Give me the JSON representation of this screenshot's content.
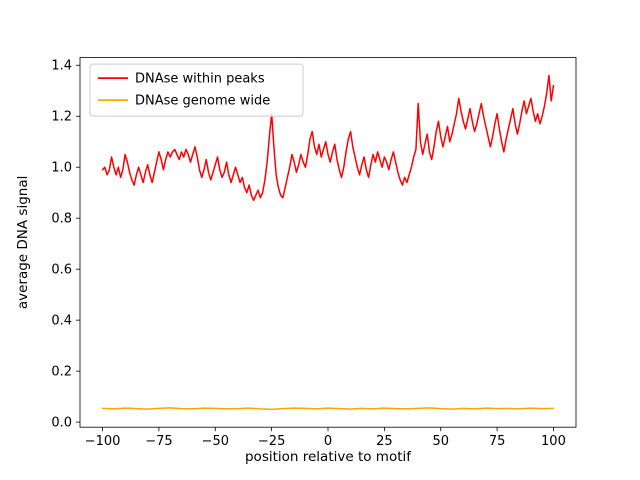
{
  "figure": {
    "background": "#ffffff"
  },
  "chart_data": {
    "type": "line",
    "title": "",
    "xlabel": "position relative to motif",
    "ylabel": "average DNA signal",
    "xlim": [
      -110,
      110
    ],
    "ylim": [
      -0.02,
      1.43
    ],
    "xticks": [
      -100,
      -75,
      -50,
      -25,
      0,
      25,
      50,
      75,
      100
    ],
    "yticks": [
      0.0,
      0.2,
      0.4,
      0.6,
      0.8,
      1.0,
      1.2,
      1.4
    ],
    "grid": false,
    "legend": {
      "position": "upper left",
      "border_color": "#cccccc",
      "background": "#ffffff"
    },
    "series": [
      {
        "name": "DNAse within peaks",
        "color": "#ff0000",
        "x_start": -100,
        "x_step": 1,
        "values": [
          0.99,
          1.0,
          0.97,
          0.99,
          1.04,
          1.0,
          0.97,
          1.0,
          0.96,
          0.99,
          1.05,
          1.02,
          0.98,
          0.95,
          0.93,
          0.97,
          1.0,
          0.97,
          0.94,
          0.98,
          1.01,
          0.97,
          0.94,
          0.98,
          1.02,
          1.06,
          1.03,
          0.99,
          1.03,
          1.06,
          1.04,
          1.06,
          1.07,
          1.05,
          1.03,
          1.06,
          1.04,
          1.07,
          1.05,
          1.02,
          1.05,
          1.08,
          1.04,
          0.99,
          0.96,
          0.99,
          1.03,
          0.98,
          0.95,
          0.98,
          1.01,
          1.04,
          0.99,
          0.96,
          0.98,
          1.02,
          0.97,
          0.94,
          0.97,
          1.0,
          0.97,
          0.94,
          0.96,
          0.92,
          0.9,
          0.93,
          0.89,
          0.87,
          0.89,
          0.91,
          0.88,
          0.9,
          0.95,
          1.02,
          1.12,
          1.21,
          1.08,
          0.97,
          0.92,
          0.89,
          0.88,
          0.92,
          0.96,
          1.0,
          1.05,
          1.02,
          0.98,
          1.01,
          1.05,
          1.02,
          1.0,
          1.05,
          1.11,
          1.14,
          1.08,
          1.05,
          1.09,
          1.04,
          1.07,
          1.1,
          1.05,
          1.02,
          1.06,
          1.09,
          1.03,
          0.99,
          0.96,
          1.0,
          1.06,
          1.11,
          1.14,
          1.08,
          1.04,
          1.0,
          0.97,
          1.01,
          1.04,
          0.99,
          0.96,
          1.01,
          1.05,
          1.02,
          1.06,
          1.03,
          1.0,
          1.04,
          1.02,
          0.99,
          1.03,
          1.06,
          1.02,
          0.98,
          0.95,
          0.93,
          0.96,
          0.94,
          0.97,
          1.0,
          1.04,
          1.07,
          1.25,
          1.1,
          1.05,
          1.09,
          1.13,
          1.06,
          1.03,
          1.08,
          1.14,
          1.18,
          1.12,
          1.08,
          1.12,
          1.16,
          1.1,
          1.13,
          1.17,
          1.21,
          1.27,
          1.22,
          1.18,
          1.15,
          1.19,
          1.23,
          1.18,
          1.14,
          1.17,
          1.21,
          1.25,
          1.2,
          1.16,
          1.12,
          1.08,
          1.12,
          1.17,
          1.21,
          1.15,
          1.1,
          1.06,
          1.11,
          1.15,
          1.19,
          1.23,
          1.17,
          1.13,
          1.17,
          1.22,
          1.26,
          1.21,
          1.24,
          1.27,
          1.22,
          1.18,
          1.21,
          1.17,
          1.2,
          1.24,
          1.29,
          1.36,
          1.26,
          1.32
        ]
      },
      {
        "name": "DNAse genome wide",
        "color": "#ffa500",
        "x_start": -100,
        "x_step": 5,
        "values": [
          0.054,
          0.052,
          0.055,
          0.053,
          0.051,
          0.054,
          0.056,
          0.053,
          0.052,
          0.055,
          0.054,
          0.052,
          0.053,
          0.055,
          0.052,
          0.05,
          0.053,
          0.055,
          0.054,
          0.052,
          0.055,
          0.053,
          0.051,
          0.054,
          0.052,
          0.055,
          0.053,
          0.052,
          0.054,
          0.056,
          0.053,
          0.051,
          0.054,
          0.052,
          0.055,
          0.053,
          0.054,
          0.052,
          0.055,
          0.053,
          0.054
        ]
      }
    ]
  }
}
